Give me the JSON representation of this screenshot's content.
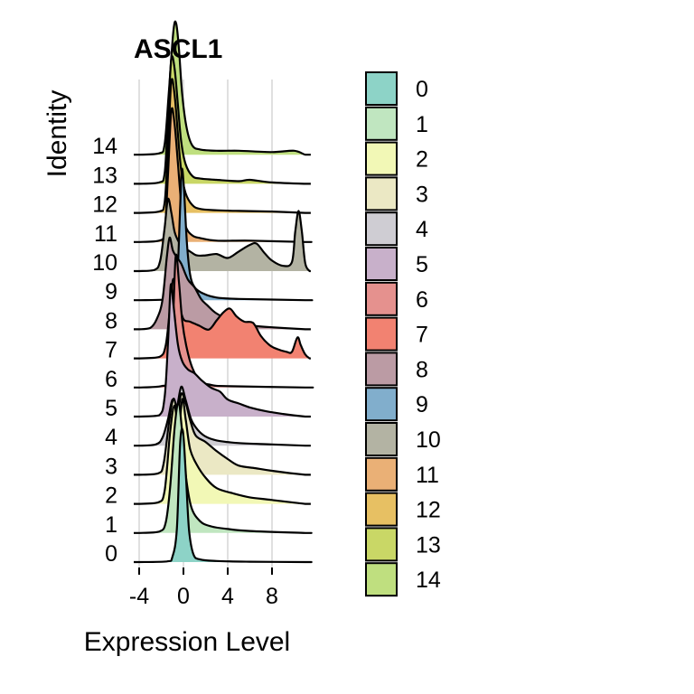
{
  "chart_data": {
    "type": "ridgeline",
    "title": "ASCL1",
    "xlabel": "Expression Level",
    "ylabel": "Identity",
    "xlim": [
      -5,
      11.5
    ],
    "xticks": [
      -4,
      0,
      4,
      8
    ],
    "x_tick_labels": [
      "-4",
      "0",
      "4",
      "8"
    ],
    "grid": true,
    "legend_position": "right",
    "categories": [
      "0",
      "1",
      "2",
      "3",
      "4",
      "5",
      "6",
      "7",
      "8",
      "9",
      "10",
      "11",
      "12",
      "13",
      "14"
    ],
    "colors": [
      "#8DD3C7",
      "#C0E6C0",
      "#F2F8B6",
      "#EBE8C4",
      "#CFCDD3",
      "#C8B0CA",
      "#E5918E",
      "#F28271",
      "#BB9BA4",
      "#81AECC",
      "#B3B3A3",
      "#EAB076",
      "#E7C063",
      "#C9D766",
      "#BFDF7F"
    ],
    "series": [
      {
        "name": "0",
        "values": [
          [
            -4,
            0
          ],
          [
            -1.5,
            0.005
          ],
          [
            -1.0,
            0.04
          ],
          [
            -0.6,
            0.25
          ],
          [
            -0.3,
            0.9
          ],
          [
            -0.05,
            1.0
          ],
          [
            0.2,
            0.7
          ],
          [
            0.5,
            0.25
          ],
          [
            0.9,
            0.06
          ],
          [
            1.5,
            0.02
          ],
          [
            3,
            0.008
          ],
          [
            6,
            0.003
          ],
          [
            11,
            0
          ]
        ]
      },
      {
        "name": "1",
        "values": [
          [
            -4,
            0
          ],
          [
            -2.2,
            0.01
          ],
          [
            -1.6,
            0.08
          ],
          [
            -1.2,
            0.35
          ],
          [
            -0.8,
            0.8
          ],
          [
            -0.45,
            1.0
          ],
          [
            -0.15,
            0.8
          ],
          [
            0.2,
            0.45
          ],
          [
            0.7,
            0.2
          ],
          [
            1.5,
            0.09
          ],
          [
            2.5,
            0.05
          ],
          [
            4,
            0.03
          ],
          [
            6,
            0.015
          ],
          [
            11,
            0
          ]
        ]
      },
      {
        "name": "2",
        "values": [
          [
            -4,
            0
          ],
          [
            -2.3,
            0.01
          ],
          [
            -1.7,
            0.1
          ],
          [
            -1.2,
            0.55
          ],
          [
            -0.8,
            0.75
          ],
          [
            -0.45,
            0.55
          ],
          [
            -0.1,
            0.8
          ],
          [
            0.2,
            0.65
          ],
          [
            0.6,
            0.42
          ],
          [
            1.2,
            0.3
          ],
          [
            2,
            0.2
          ],
          [
            3,
            0.12
          ],
          [
            4.5,
            0.08
          ],
          [
            6,
            0.05
          ],
          [
            8,
            0.03
          ],
          [
            11,
            0
          ]
        ]
      },
      {
        "name": "3",
        "values": [
          [
            -4,
            0
          ],
          [
            -2.3,
            0.01
          ],
          [
            -1.8,
            0.08
          ],
          [
            -1.3,
            0.4
          ],
          [
            -0.9,
            0.58
          ],
          [
            -0.5,
            0.48
          ],
          [
            -0.2,
            0.62
          ],
          [
            0.2,
            0.55
          ],
          [
            0.6,
            0.42
          ],
          [
            1.1,
            0.3
          ],
          [
            2,
            0.25
          ],
          [
            3,
            0.18
          ],
          [
            4,
            0.12
          ],
          [
            5,
            0.07
          ],
          [
            6.5,
            0.05
          ],
          [
            8,
            0.03
          ],
          [
            11,
            0
          ]
        ]
      },
      {
        "name": "4",
        "values": [
          [
            -4,
            0
          ],
          [
            -2.5,
            0.01
          ],
          [
            -1.9,
            0.06
          ],
          [
            -1.4,
            0.2
          ],
          [
            -1.0,
            0.35
          ],
          [
            -0.6,
            0.3
          ],
          [
            -0.2,
            0.45
          ],
          [
            0.2,
            0.35
          ],
          [
            0.7,
            0.2
          ],
          [
            1.3,
            0.12
          ],
          [
            2,
            0.07
          ],
          [
            3,
            0.04
          ],
          [
            5,
            0.02
          ],
          [
            8,
            0.01
          ],
          [
            11,
            0
          ]
        ]
      },
      {
        "name": "5",
        "values": [
          [
            -4,
            0
          ],
          [
            -2.2,
            0.01
          ],
          [
            -1.7,
            0.15
          ],
          [
            -1.4,
            0.55
          ],
          [
            -1.15,
            1.0
          ],
          [
            -0.9,
            0.85
          ],
          [
            -0.5,
            0.55
          ],
          [
            -0.1,
            0.42
          ],
          [
            0.4,
            0.36
          ],
          [
            1,
            0.33
          ],
          [
            1.6,
            0.28
          ],
          [
            2.5,
            0.22
          ],
          [
            3.3,
            0.19
          ],
          [
            4,
            0.13
          ],
          [
            5,
            0.1
          ],
          [
            6,
            0.07
          ],
          [
            7.5,
            0.04
          ],
          [
            9,
            0.02
          ],
          [
            11,
            0
          ]
        ]
      },
      {
        "name": "6",
        "values": [
          [
            -4,
            0
          ],
          [
            -2,
            0.01
          ],
          [
            -1.4,
            0.05
          ],
          [
            -1.0,
            0.4
          ],
          [
            -0.7,
            1.0
          ],
          [
            -0.4,
            0.8
          ],
          [
            -0.1,
            0.5
          ],
          [
            0.3,
            0.3
          ],
          [
            0.8,
            0.15
          ],
          [
            1.5,
            0.05
          ],
          [
            2.5,
            0.02
          ],
          [
            4,
            0.01
          ],
          [
            11,
            0
          ]
        ]
      },
      {
        "name": "7",
        "values": [
          [
            -4,
            0
          ],
          [
            -2.2,
            0.01
          ],
          [
            -1.6,
            0.1
          ],
          [
            -1.2,
            0.4
          ],
          [
            -0.95,
            0.6
          ],
          [
            -0.7,
            0.55
          ],
          [
            -0.4,
            0.42
          ],
          [
            0,
            0.3
          ],
          [
            0.6,
            0.28
          ],
          [
            1.4,
            0.25
          ],
          [
            2.3,
            0.22
          ],
          [
            3,
            0.29
          ],
          [
            3.6,
            0.35
          ],
          [
            4.2,
            0.38
          ],
          [
            4.8,
            0.32
          ],
          [
            5.5,
            0.28
          ],
          [
            6.3,
            0.27
          ],
          [
            7,
            0.17
          ],
          [
            7.8,
            0.1
          ],
          [
            8.5,
            0.07
          ],
          [
            9.3,
            0.05
          ],
          [
            9.8,
            0.05
          ],
          [
            10.3,
            0.16
          ],
          [
            10.6,
            0.1
          ],
          [
            11,
            0.03
          ],
          [
            11.4,
            0
          ]
        ]
      },
      {
        "name": "8",
        "values": [
          [
            -4,
            0
          ],
          [
            -3.0,
            0.01
          ],
          [
            -2.4,
            0.08
          ],
          [
            -1.9,
            0.22
          ],
          [
            -1.5,
            0.55
          ],
          [
            -1.25,
            0.7
          ],
          [
            -0.95,
            0.6
          ],
          [
            -0.6,
            0.55
          ],
          [
            -0.2,
            0.5
          ],
          [
            0.4,
            0.38
          ],
          [
            1,
            0.32
          ],
          [
            1.6,
            0.23
          ],
          [
            2.2,
            0.18
          ],
          [
            3,
            0.12
          ],
          [
            4.5,
            0.06
          ],
          [
            6,
            0.03
          ],
          [
            8,
            0.015
          ],
          [
            11,
            0
          ]
        ]
      },
      {
        "name": "9",
        "values": [
          [
            -4,
            0
          ],
          [
            -1,
            0.01
          ],
          [
            -0.6,
            0.1
          ],
          [
            -0.3,
            0.7
          ],
          [
            -0.15,
            1.0
          ],
          [
            0.05,
            0.85
          ],
          [
            0.3,
            0.45
          ],
          [
            0.6,
            0.2
          ],
          [
            1,
            0.1
          ],
          [
            1.8,
            0.05
          ],
          [
            3,
            0.02
          ],
          [
            5,
            0.01
          ],
          [
            11,
            0
          ]
        ]
      },
      {
        "name": "10",
        "values": [
          [
            -4,
            0
          ],
          [
            -2.6,
            0.01
          ],
          [
            -2.1,
            0.08
          ],
          [
            -1.7,
            0.33
          ],
          [
            -1.4,
            0.55
          ],
          [
            -1.1,
            0.45
          ],
          [
            -0.8,
            0.3
          ],
          [
            -0.4,
            0.22
          ],
          [
            0,
            0.18
          ],
          [
            0.6,
            0.15
          ],
          [
            1.2,
            0.12
          ],
          [
            2,
            0.12
          ],
          [
            3,
            0.13
          ],
          [
            4,
            0.1
          ],
          [
            5,
            0.15
          ],
          [
            6,
            0.2
          ],
          [
            6.6,
            0.21
          ],
          [
            7.3,
            0.14
          ],
          [
            8,
            0.08
          ],
          [
            9,
            0.04
          ],
          [
            9.8,
            0.07
          ],
          [
            10.1,
            0.3
          ],
          [
            10.4,
            0.46
          ],
          [
            10.7,
            0.3
          ],
          [
            11,
            0.06
          ],
          [
            11.4,
            0
          ]
        ]
      },
      {
        "name": "11",
        "values": [
          [
            -4,
            0
          ],
          [
            -2.2,
            0.01
          ],
          [
            -1.7,
            0.08
          ],
          [
            -1.4,
            0.5
          ],
          [
            -1.1,
            1.0
          ],
          [
            -0.8,
            0.9
          ],
          [
            -0.5,
            0.6
          ],
          [
            -0.2,
            0.3
          ],
          [
            0.2,
            0.12
          ],
          [
            0.8,
            0.05
          ],
          [
            1.5,
            0.03
          ],
          [
            3,
            0.01
          ],
          [
            6,
            0.01
          ],
          [
            11,
            0
          ]
        ]
      },
      {
        "name": "12",
        "values": [
          [
            -4,
            0
          ],
          [
            -2.2,
            0.01
          ],
          [
            -1.7,
            0.08
          ],
          [
            -1.4,
            0.5
          ],
          [
            -1.1,
            1.0
          ],
          [
            -0.8,
            0.9
          ],
          [
            -0.5,
            0.6
          ],
          [
            -0.2,
            0.32
          ],
          [
            0.2,
            0.15
          ],
          [
            0.8,
            0.06
          ],
          [
            1.5,
            0.03
          ],
          [
            3,
            0.02
          ],
          [
            5,
            0.015
          ],
          [
            8,
            0.01
          ],
          [
            11,
            0
          ]
        ]
      },
      {
        "name": "13",
        "values": [
          [
            -4,
            0
          ],
          [
            -2.2,
            0.01
          ],
          [
            -1.7,
            0.08
          ],
          [
            -1.4,
            0.5
          ],
          [
            -1.1,
            0.95
          ],
          [
            -0.8,
            0.88
          ],
          [
            -0.5,
            0.6
          ],
          [
            -0.2,
            0.32
          ],
          [
            0.2,
            0.15
          ],
          [
            0.8,
            0.06
          ],
          [
            1.5,
            0.04
          ],
          [
            3,
            0.03
          ],
          [
            5,
            0.02
          ],
          [
            6,
            0.03
          ],
          [
            8,
            0.01
          ],
          [
            11,
            0
          ]
        ]
      },
      {
        "name": "14",
        "values": [
          [
            -4,
            0
          ],
          [
            -2.2,
            0.01
          ],
          [
            -1.7,
            0.08
          ],
          [
            -1.3,
            0.5
          ],
          [
            -0.9,
            0.95
          ],
          [
            -0.65,
            1.0
          ],
          [
            -0.4,
            0.8
          ],
          [
            -0.1,
            0.45
          ],
          [
            0.3,
            0.2
          ],
          [
            0.8,
            0.07
          ],
          [
            1.5,
            0.04
          ],
          [
            3,
            0.03
          ],
          [
            5,
            0.03
          ],
          [
            8,
            0.02
          ],
          [
            10,
            0.03
          ],
          [
            11,
            0
          ]
        ]
      }
    ]
  }
}
